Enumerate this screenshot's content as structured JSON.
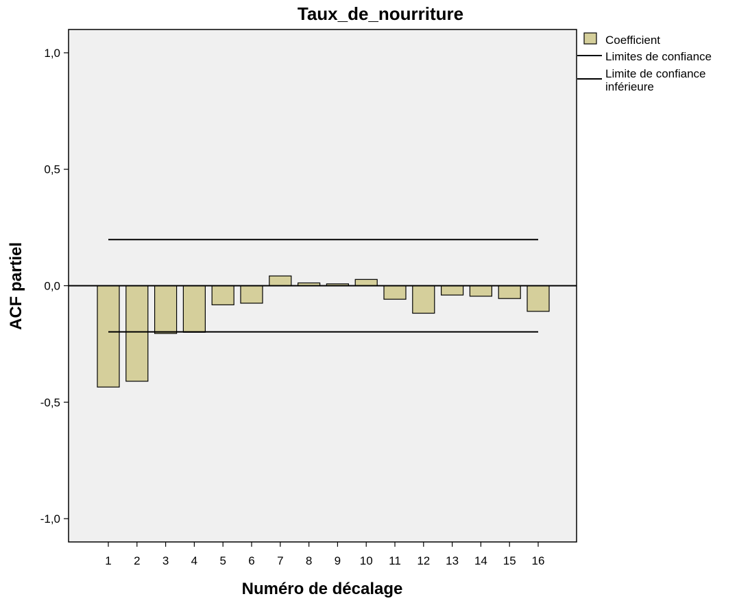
{
  "chart_data": {
    "type": "bar",
    "title": "Taux_de_nourriture",
    "xlabel": "Numéro de décalage",
    "ylabel": "ACF partiel",
    "categories": [
      "1",
      "2",
      "3",
      "4",
      "5",
      "6",
      "7",
      "8",
      "9",
      "10",
      "11",
      "12",
      "13",
      "14",
      "15",
      "16"
    ],
    "series": [
      {
        "name": "Coefficient",
        "values": [
          -0.435,
          -0.41,
          -0.205,
          -0.2,
          -0.082,
          -0.075,
          0.042,
          0.012,
          0.008,
          0.027,
          -0.058,
          -0.118,
          -0.04,
          -0.045,
          -0.055,
          -0.11
        ]
      }
    ],
    "confidence_limits": {
      "upper": 0.198,
      "lower": -0.198
    },
    "ylim": [
      -1.1,
      1.1
    ],
    "yticks": [
      1.0,
      0.5,
      0.0,
      -0.5,
      -1.0
    ],
    "ytick_labels": [
      "1,0",
      "0,5",
      "0,0",
      "-0,5",
      "-1,0"
    ],
    "legend": {
      "placement": "right-top",
      "entries": [
        "Coefficient",
        "Limites de confiance",
        "Limite de confiance inférieure"
      ],
      "entry_lines": [
        [
          "Coefficient"
        ],
        [
          "Limites de confiance"
        ],
        [
          "Limite de confiance",
          "inférieure"
        ]
      ]
    },
    "grid": false,
    "colors": {
      "bar_fill": "#d5cf9b",
      "bar_stroke": "#000000",
      "plot_background": "#f0f0f0",
      "lines": "#000000"
    }
  }
}
